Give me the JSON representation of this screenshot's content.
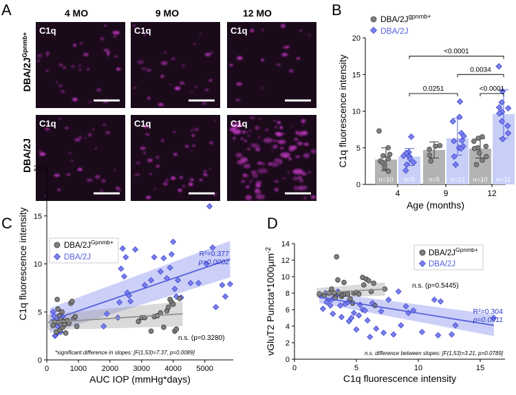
{
  "colors": {
    "wt_point": "#808080",
    "wt_bar": "#b3b3b3",
    "d2j_point": "#7b7ff0",
    "d2j_bar": "#c7cff7",
    "d2j_line": "#5560dc",
    "d2j_text": "#2b35c9",
    "wt_line": "#909090",
    "micro_bg": "#1a0a1a",
    "micro_signal": "#c838c8"
  },
  "panel_a": {
    "letter": "A",
    "columns": [
      "4 MO",
      "9 MO",
      "12 MO"
    ],
    "rows": [
      "DBA/2J",
      "DBA/2J"
    ],
    "row_sup": [
      "Gpnmb+",
      ""
    ],
    "tile_label": "C1q"
  },
  "panel_b": {
    "letter": "B"
  },
  "panel_c": {
    "letter": "C"
  },
  "panel_d": {
    "letter": "D"
  },
  "chart_data": [
    {
      "id": "B",
      "type": "bar",
      "title": "",
      "xlabel": "Age (months)",
      "ylabel": "C1q fluorescence intensity",
      "ylim": [
        0,
        20
      ],
      "yticks": [
        0,
        5,
        10,
        15,
        20
      ],
      "categories": [
        "4",
        "9",
        "12"
      ],
      "legend": {
        "position": "top-left",
        "entries": [
          {
            "name": "DBA/2J",
            "sup": "gpnmb+"
          },
          {
            "name": "DBA/2J",
            "sup": ""
          }
        ]
      },
      "series": [
        {
          "name": "DBA/2J gpnmb+",
          "values": [
            3.4,
            4.7,
            4.9
          ],
          "sd_low": [
            1.9,
            3.6,
            3.6
          ],
          "sd_high": [
            5.0,
            5.8,
            6.3
          ],
          "n_labels": [
            "n=10",
            "n=5",
            "n=10"
          ],
          "points": [
            [
              7.3,
              5.0,
              4.1,
              3.9,
              3.5,
              3.2,
              3.0,
              2.7,
              2.3,
              1.8
            ],
            [
              5.3,
              5.2,
              4.8,
              4.0,
              3.2
            ],
            [
              6.5,
              6.3,
              5.9,
              5.2,
              5.0,
              4.9,
              4.3,
              3.8,
              3.3,
              2.7
            ]
          ]
        },
        {
          "name": "DBA/2J",
          "values": [
            3.8,
            6.3,
            9.6
          ],
          "sd_low": [
            2.6,
            4.0,
            6.3
          ],
          "sd_high": [
            4.9,
            9.0,
            12.9
          ],
          "n_labels": [
            "n=9",
            "n=12",
            "n=11"
          ],
          "points": [
            [
              6.5,
              4.4,
              4.3,
              3.9,
              3.8,
              3.5,
              3.0,
              2.7,
              1.9
            ],
            [
              11.3,
              9.2,
              8.6,
              7.0,
              6.6,
              6.0,
              5.9,
              5.2,
              5.0,
              4.9,
              3.8,
              2.7
            ],
            [
              16.1,
              12.7,
              11.2,
              10.5,
              10.4,
              9.9,
              9.7,
              8.6,
              8.0,
              7.0,
              6.2
            ]
          ]
        }
      ],
      "annotations": [
        {
          "label": "<0.0001",
          "from": [
            "4",
            "DBA/2J"
          ],
          "to": [
            "12",
            "DBA/2J"
          ],
          "y": 17.5
        },
        {
          "label": "0.0034",
          "from": [
            "9",
            "DBA/2J"
          ],
          "to": [
            "12",
            "DBA/2J"
          ],
          "y": 15.0
        },
        {
          "label": "0.0251",
          "from": [
            "4",
            "DBA/2J"
          ],
          "to": [
            "9",
            "DBA/2J"
          ],
          "y": 12.4
        },
        {
          "label": "<0.0001",
          "from": [
            "12",
            "DBA/2J gpnmb+"
          ],
          "to": [
            "12",
            "DBA/2J"
          ],
          "y": 12.4
        }
      ]
    },
    {
      "id": "C",
      "type": "scatter",
      "xlabel": "AUC IOP (mmHg*days)",
      "ylabel": "C1q fluorescence intensity",
      "xlim": [
        0,
        5900
      ],
      "ylim": [
        0,
        20
      ],
      "xticks": [
        0,
        1000,
        2000,
        3000,
        4000,
        5000
      ],
      "yticks": [
        0,
        5,
        10,
        15,
        20
      ],
      "legend": {
        "position": "top-left",
        "entries": [
          {
            "name": "DBA/2J",
            "sup": "Gpnmb+"
          },
          {
            "name": "DBA/2J",
            "sup": ""
          }
        ]
      },
      "series": [
        {
          "name": "DBA/2J Gpnmb+",
          "regression": {
            "x": [
              0,
              4300
            ],
            "y": [
              3.9,
              4.8
            ],
            "ci_lower": [
              3.1,
              3.5
            ],
            "ci_upper": [
              4.7,
              6.1
            ]
          },
          "stats": "n.s. (p=0.3280)",
          "points": [
            [
              200,
              3.6
            ],
            [
              250,
              4.0
            ],
            [
              300,
              2.9
            ],
            [
              330,
              6.3
            ],
            [
              350,
              5.3
            ],
            [
              370,
              3.9
            ],
            [
              400,
              4.6
            ],
            [
              420,
              3.1
            ],
            [
              450,
              4.2
            ],
            [
              480,
              5.0
            ],
            [
              500,
              3.4
            ],
            [
              530,
              4.0
            ],
            [
              560,
              3.7
            ],
            [
              600,
              2.8
            ],
            [
              650,
              4.1
            ],
            [
              700,
              3.8
            ],
            [
              760,
              5.9
            ],
            [
              800,
              6.1
            ],
            [
              850,
              4.3
            ],
            [
              900,
              4.5
            ],
            [
              950,
              3.5
            ],
            [
              2900,
              4.0
            ],
            [
              3000,
              4.4
            ],
            [
              3100,
              4.4
            ],
            [
              3300,
              3.0
            ],
            [
              3400,
              4.5
            ],
            [
              3500,
              4.6
            ],
            [
              3600,
              4.9
            ],
            [
              3700,
              3.4
            ],
            [
              3800,
              5.1
            ],
            [
              3850,
              5.5
            ],
            [
              3900,
              6.3
            ],
            [
              3950,
              6.0
            ],
            [
              4000,
              5.8
            ],
            [
              4050,
              3.0
            ],
            [
              4100,
              3.2
            ],
            [
              4200,
              6.4
            ]
          ]
        },
        {
          "name": "DBA/2J",
          "regression": {
            "x": [
              100,
              5800
            ],
            "y": [
              4.1,
              10.5
            ],
            "ci_lower": [
              2.8,
              8.6
            ],
            "ci_upper": [
              5.4,
              12.4
            ]
          },
          "stats_r2": "R²=0.377",
          "stats_p": "p=0.0002",
          "points": [
            [
              200,
              5.0
            ],
            [
              230,
              4.6
            ],
            [
              260,
              2.5
            ],
            [
              290,
              2.6
            ],
            [
              320,
              2.8
            ],
            [
              350,
              3.5
            ],
            [
              380,
              3.9
            ],
            [
              410,
              4.3
            ],
            [
              440,
              2.9
            ],
            [
              470,
              4.4
            ],
            [
              500,
              4.5
            ],
            [
              1800,
              3.5
            ],
            [
              1900,
              4.8
            ],
            [
              2250,
              4.4
            ],
            [
              2300,
              6.0
            ],
            [
              2350,
              9.5
            ],
            [
              2400,
              11.6
            ],
            [
              2450,
              8.7
            ],
            [
              2500,
              10.7
            ],
            [
              2550,
              7.0
            ],
            [
              2600,
              6.7
            ],
            [
              2650,
              6.1
            ],
            [
              2800,
              11.5
            ],
            [
              3100,
              7.8
            ],
            [
              3300,
              8.3
            ],
            [
              3400,
              10.7
            ],
            [
              3600,
              9.2
            ],
            [
              3700,
              10.6
            ],
            [
              3800,
              8.5
            ],
            [
              3900,
              9.6
            ],
            [
              3950,
              11.0
            ],
            [
              4000,
              12.3
            ],
            [
              4050,
              7.4
            ],
            [
              4100,
              6.6
            ],
            [
              4150,
              8.3
            ],
            [
              4250,
              6.5
            ],
            [
              4550,
              8.0
            ],
            [
              4800,
              8.0
            ],
            [
              5050,
              10.0
            ],
            [
              5150,
              16.0
            ],
            [
              5250,
              11.7
            ],
            [
              5350,
              5.5
            ],
            [
              5550,
              7.8
            ],
            [
              5650,
              6.6
            ],
            [
              5800,
              7.9
            ]
          ]
        }
      ],
      "footnote": "*significant difference in slopes: [F(1,53)=7.37, p=0.0089]"
    },
    {
      "id": "D",
      "type": "scatter",
      "xlabel": "C1q fluorescence intensity",
      "ylabel": "vGluT2 Puncta*1000µm",
      "ylabel_sup": "-2",
      "xlim": [
        0,
        17
      ],
      "ylim": [
        0,
        14
      ],
      "xticks": [
        0,
        5,
        10,
        15
      ],
      "yticks": [
        0,
        2,
        4,
        6,
        8,
        10,
        12,
        14
      ],
      "legend": {
        "position": "top-right",
        "entries": [
          {
            "name": "DBA/2J",
            "sup": "Gpnmb+"
          },
          {
            "name": "DBA/2J",
            "sup": ""
          }
        ]
      },
      "series": [
        {
          "name": "DBA/2J Gpnmb+",
          "regression": {
            "x": [
              1.8,
              7.3
            ],
            "y": [
              8.0,
              8.5
            ],
            "ci_lower": [
              7.4,
              7.7
            ],
            "ci_upper": [
              8.6,
              9.3
            ]
          },
          "stats": "n.s. (p=0.5445)",
          "points": [
            [
              2.0,
              7.9
            ],
            [
              2.4,
              7.7
            ],
            [
              2.8,
              8.0
            ],
            [
              3.0,
              8.5
            ],
            [
              3.2,
              8.0
            ],
            [
              3.4,
              12.4
            ],
            [
              3.5,
              9.6
            ],
            [
              3.6,
              8.0
            ],
            [
              3.8,
              7.6
            ],
            [
              3.9,
              7.8
            ],
            [
              4.0,
              9.3
            ],
            [
              4.1,
              7.9
            ],
            [
              4.3,
              7.9
            ],
            [
              4.5,
              7.3
            ],
            [
              4.8,
              8.0
            ],
            [
              5.0,
              8.1
            ],
            [
              5.2,
              7.9
            ],
            [
              5.5,
              9.9
            ],
            [
              5.6,
              9.0
            ],
            [
              5.8,
              9.7
            ],
            [
              6.0,
              9.5
            ],
            [
              6.2,
              8.2
            ],
            [
              6.4,
              9.2
            ],
            [
              6.5,
              6.5
            ],
            [
              7.3,
              8.5
            ],
            [
              3.3,
              7.4
            ],
            [
              4.7,
              6.8
            ]
          ]
        },
        {
          "name": "DBA/2J",
          "regression": {
            "x": [
              2.0,
              16.1
            ],
            "y": [
              7.5,
              4.1
            ],
            "ci_lower": [
              6.8,
              2.8
            ],
            "ci_upper": [
              8.2,
              5.4
            ]
          },
          "stats_r2": "R²=0.304",
          "stats_p": "p=0.0011",
          "points": [
            [
              2.1,
              7.7
            ],
            [
              2.3,
              6.1
            ],
            [
              2.5,
              8.0
            ],
            [
              2.7,
              7.1
            ],
            [
              2.9,
              6.5
            ],
            [
              3.0,
              7.2
            ],
            [
              3.1,
              5.5
            ],
            [
              3.3,
              7.6
            ],
            [
              3.5,
              8.2
            ],
            [
              3.7,
              6.5
            ],
            [
              3.8,
              5.1
            ],
            [
              4.1,
              6.7
            ],
            [
              4.3,
              6.9
            ],
            [
              4.4,
              4.6
            ],
            [
              4.8,
              5.6
            ],
            [
              5.0,
              3.6
            ],
            [
              5.2,
              5.3
            ],
            [
              5.3,
              6.6
            ],
            [
              5.5,
              6.0
            ],
            [
              5.7,
              5.9
            ],
            [
              5.9,
              4.7
            ],
            [
              6.1,
              2.7
            ],
            [
              6.3,
              6.8
            ],
            [
              6.6,
              3.7
            ],
            [
              7.0,
              5.8
            ],
            [
              7.2,
              3.2
            ],
            [
              7.6,
              7.2
            ],
            [
              8.0,
              3.0
            ],
            [
              8.4,
              8.2
            ],
            [
              8.6,
              4.1
            ],
            [
              9.0,
              6.4
            ],
            [
              9.2,
              5.6
            ],
            [
              9.6,
              5.9
            ],
            [
              10.3,
              3.3
            ],
            [
              11.3,
              7.2
            ],
            [
              11.6,
              2.9
            ],
            [
              11.8,
              7.0
            ],
            [
              12.7,
              3.0
            ],
            [
              13.0,
              4.1
            ],
            [
              16.1,
              5.0
            ],
            [
              2.6,
              6.9
            ],
            [
              4.6,
              5.0
            ]
          ]
        }
      ],
      "footnote": "n.s. difference between slopes: [F(1,53)=3.21, p=0.0789]"
    }
  ]
}
